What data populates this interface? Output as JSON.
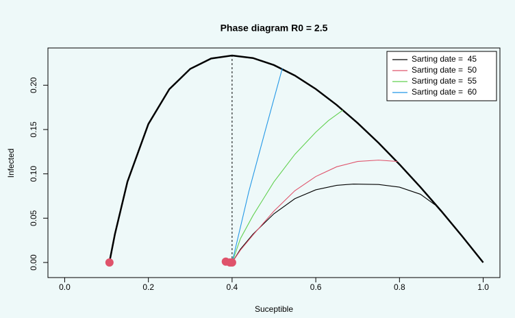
{
  "chart_data": {
    "type": "line",
    "title": "Phase diagram R0 = 2.5",
    "x_label": "Suceptible",
    "y_label": "Infected",
    "xlim": [
      -0.04,
      1.04
    ],
    "ylim": [
      -0.017,
      0.242
    ],
    "xticks": [
      {
        "value": 0,
        "label": "0.0"
      },
      {
        "value": 0.2,
        "label": "0.2"
      },
      {
        "value": 0.4,
        "label": "0.4"
      },
      {
        "value": 0.6,
        "label": "0.6"
      },
      {
        "value": 0.8,
        "label": "0.8"
      },
      {
        "value": 1,
        "label": "1.0"
      }
    ],
    "yticks": [
      {
        "value": 0,
        "label": "0.00"
      },
      {
        "value": 0.05,
        "label": "0.05"
      },
      {
        "value": 0.1,
        "label": "0.10"
      },
      {
        "value": 0.15,
        "label": "0.15"
      },
      {
        "value": 0.2,
        "label": "0.20"
      }
    ],
    "legend_position": "top-right",
    "main_curve": {
      "color": "#000000",
      "x": [
        1.0,
        0.95,
        0.9,
        0.85,
        0.8,
        0.75,
        0.7,
        0.65,
        0.6,
        0.55,
        0.5,
        0.45,
        0.4,
        0.35,
        0.3,
        0.25,
        0.2,
        0.15,
        0.12,
        0.108
      ],
      "values": [
        0,
        0.0295,
        0.0579,
        0.085,
        0.1107,
        0.1349,
        0.1573,
        0.1777,
        0.1957,
        0.2109,
        0.2227,
        0.2306,
        0.2335,
        0.2301,
        0.2184,
        0.1955,
        0.1562,
        0.0912,
        0.0319,
        0.003
      ]
    },
    "series": [
      {
        "name": "Sarting date =  45",
        "color": "#000000",
        "x": [
          0.885,
          0.85,
          0.8,
          0.75,
          0.69,
          0.65,
          0.6,
          0.55,
          0.5,
          0.45,
          0.42,
          0.4
        ],
        "values": [
          0.065,
          0.077,
          0.085,
          0.088,
          0.0885,
          0.087,
          0.082,
          0.072,
          0.055,
          0.032,
          0.015,
          0
        ]
      },
      {
        "name": "Sarting date =  50",
        "color": "#DF536B",
        "x": [
          0.795,
          0.75,
          0.7,
          0.65,
          0.6,
          0.55,
          0.5,
          0.45,
          0.42,
          0.4
        ],
        "values": [
          0.114,
          0.1155,
          0.114,
          0.108,
          0.097,
          0.081,
          0.058,
          0.031,
          0.014,
          0
        ]
      },
      {
        "name": "Sarting date =  55",
        "color": "#61D04F",
        "x": [
          0.665,
          0.63,
          0.6,
          0.55,
          0.5,
          0.45,
          0.42,
          0.4
        ],
        "values": [
          0.172,
          0.16,
          0.147,
          0.122,
          0.091,
          0.053,
          0.027,
          0
        ]
      },
      {
        "name": "Sarting date =  60",
        "color": "#2297E6",
        "x": [
          0.52,
          0.48,
          0.44,
          0.41,
          0.4
        ],
        "values": [
          0.219,
          0.15,
          0.08,
          0.02,
          0
        ]
      }
    ],
    "threshold_line": {
      "x": 0.4,
      "values": [
        0,
        0.2335
      ]
    },
    "points": {
      "color": "#DF536B",
      "x": [
        0.107,
        0.385,
        0.395,
        0.4
      ],
      "values": [
        0,
        0.001,
        0,
        0
      ]
    }
  }
}
